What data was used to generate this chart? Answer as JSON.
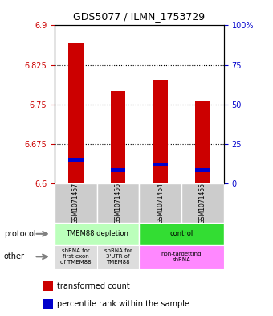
{
  "title": "GDS5077 / ILMN_1753729",
  "samples": [
    "GSM1071457",
    "GSM1071456",
    "GSM1071454",
    "GSM1071455"
  ],
  "red_values": [
    6.865,
    6.775,
    6.795,
    6.755
  ],
  "blue_values": [
    6.645,
    6.625,
    6.635,
    6.625
  ],
  "ylim": [
    6.6,
    6.9
  ],
  "yticks_left": [
    6.6,
    6.675,
    6.75,
    6.825,
    6.9
  ],
  "yticks_right": [
    0,
    25,
    50,
    75,
    100
  ],
  "ytick_labels_left": [
    "6.6",
    "6.675",
    "6.75",
    "6.825",
    "6.9"
  ],
  "ytick_labels_right": [
    "0",
    "25",
    "50",
    "75",
    "100%"
  ],
  "gridlines": [
    6.675,
    6.75,
    6.825
  ],
  "bar_bottom": 6.6,
  "bar_width": 0.35,
  "bar_color_red": "#cc0000",
  "bar_color_blue": "#0000cc",
  "sample_bg_color": "#cccccc",
  "label_color_left": "#cc0000",
  "label_color_right": "#0000cc",
  "legend_red": "transformed count",
  "legend_blue": "percentile rank within the sample",
  "proto_spans": [
    [
      0,
      2,
      "TMEM88 depletion",
      "#bbffbb"
    ],
    [
      2,
      4,
      "control",
      "#33dd33"
    ]
  ],
  "other_spans": [
    [
      0,
      1,
      "shRNA for\nfirst exon\nof TMEM88",
      "#dddddd"
    ],
    [
      1,
      2,
      "shRNA for\n3'UTR of\nTMEM88",
      "#dddddd"
    ],
    [
      2,
      4,
      "non-targetting\nshRNA",
      "#ff88ff"
    ]
  ]
}
